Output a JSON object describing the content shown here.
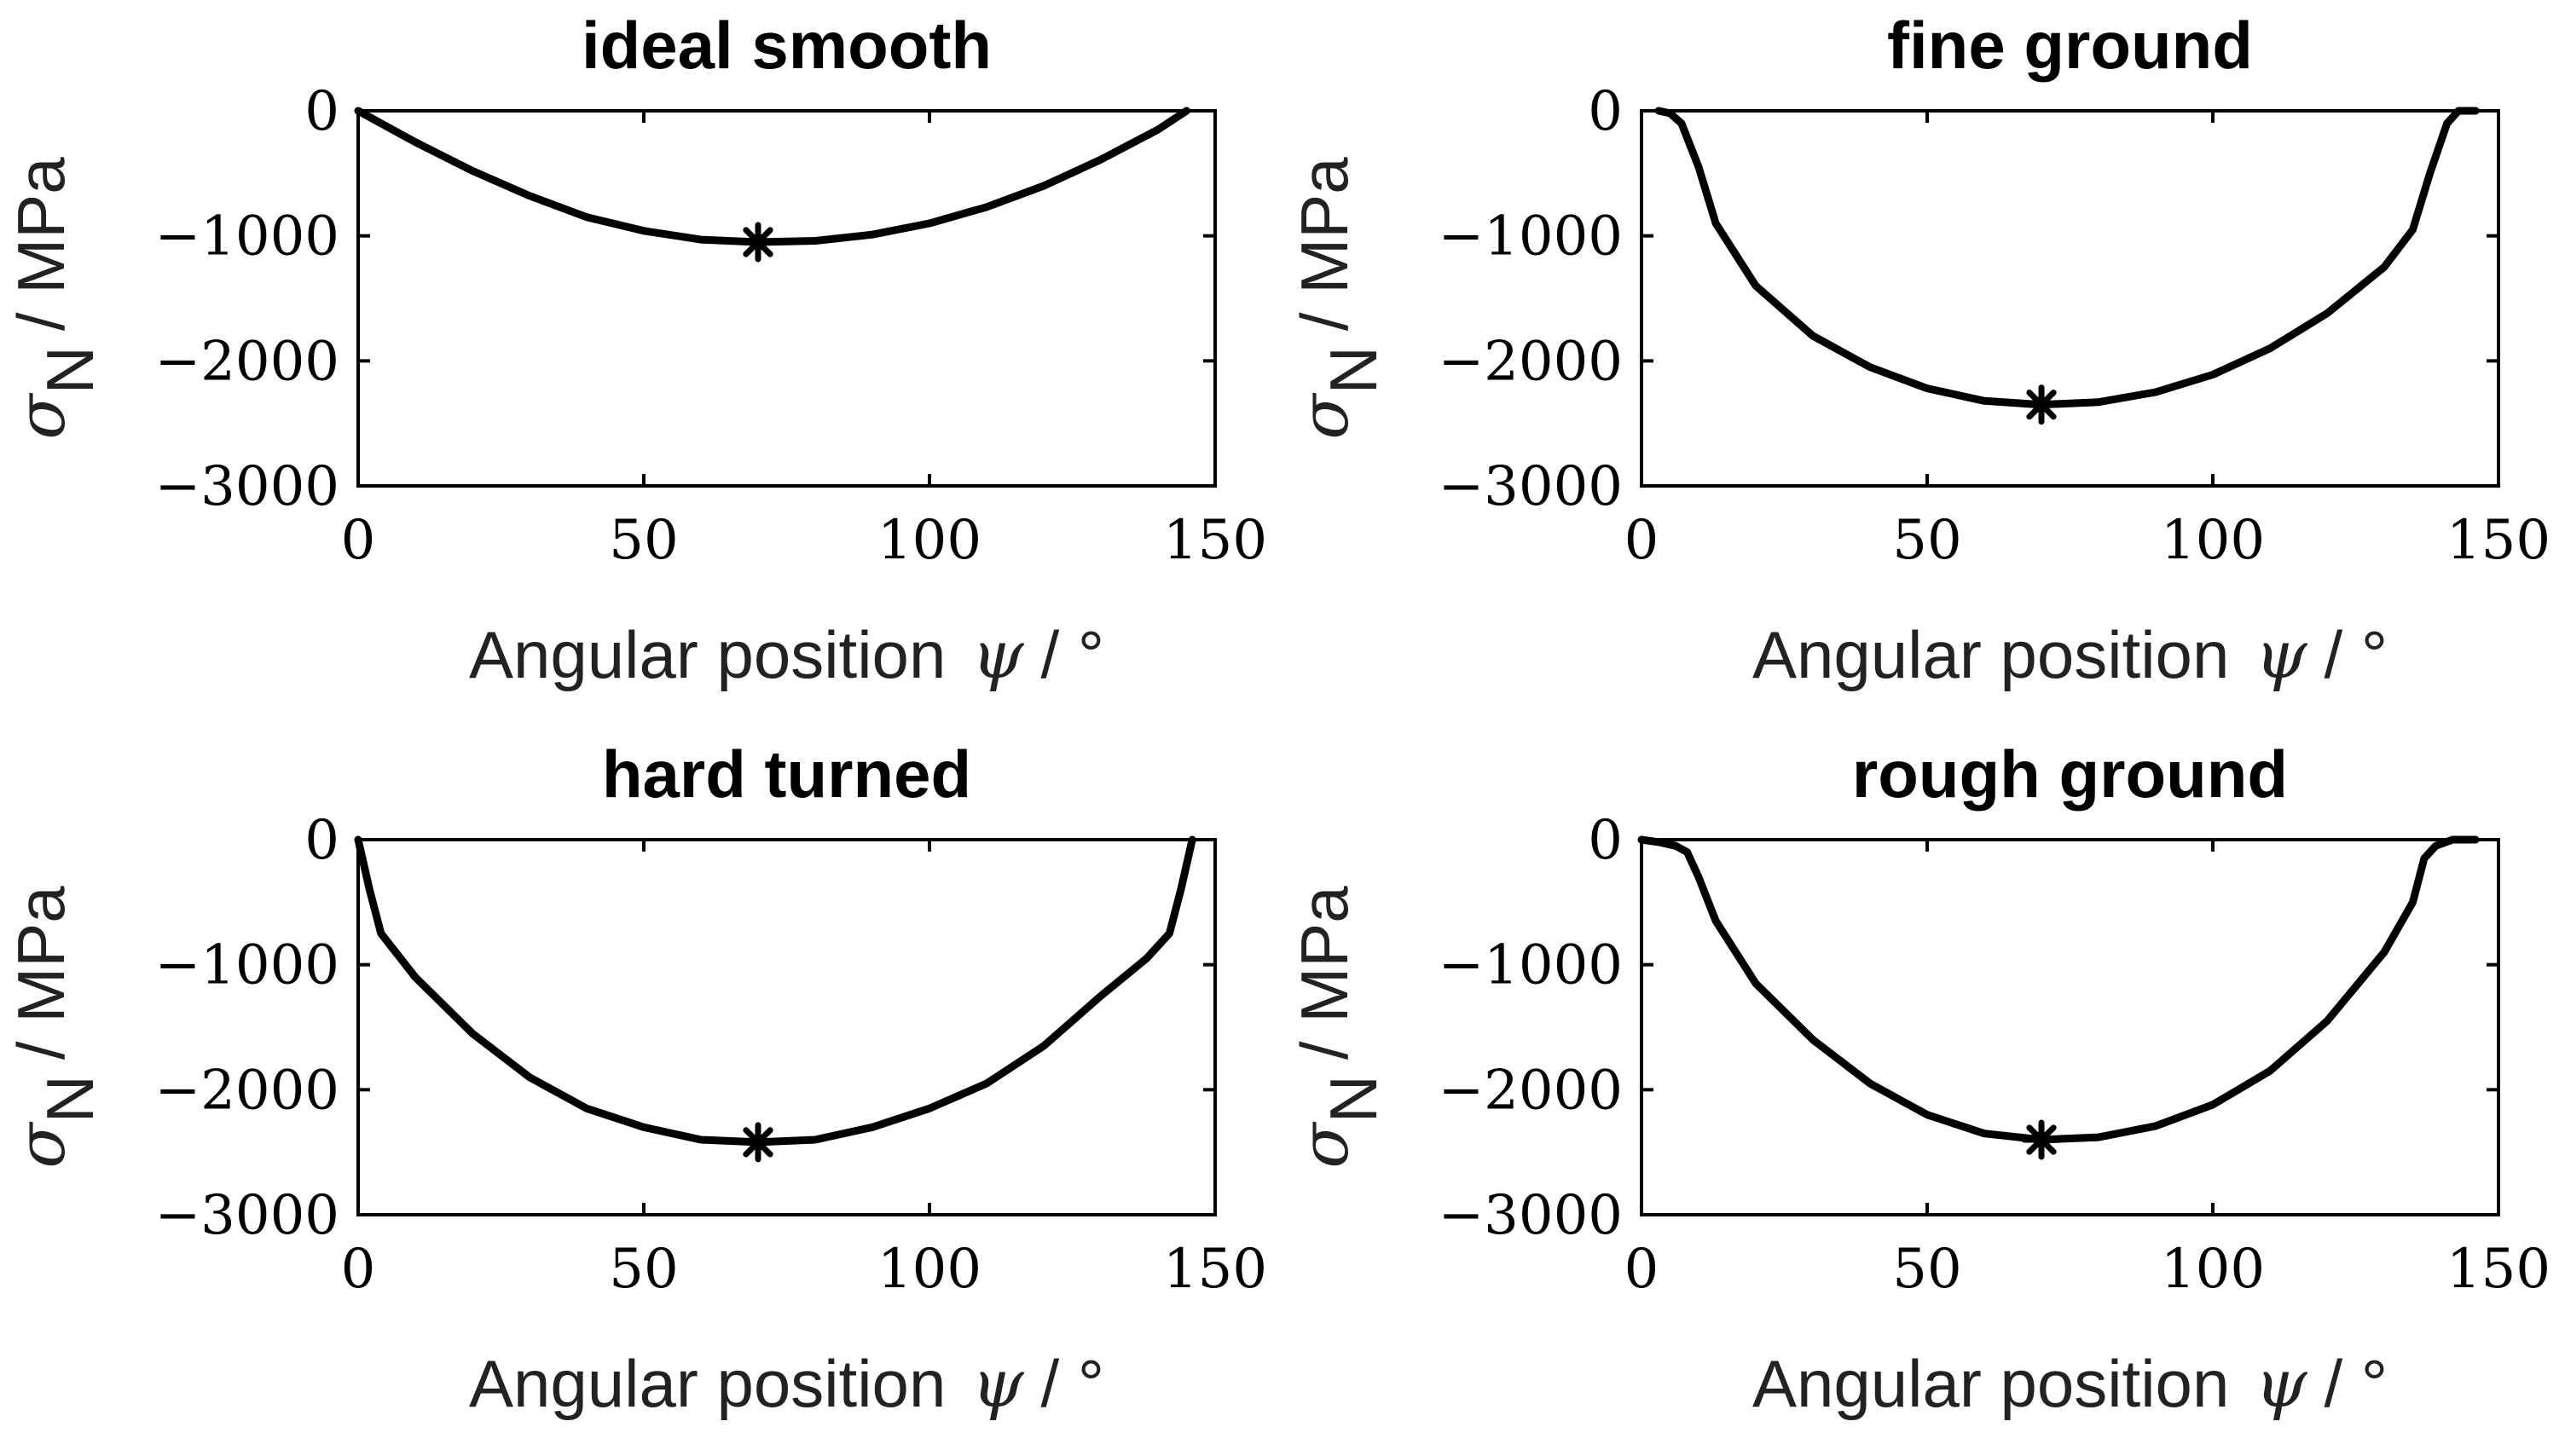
{
  "chart_data": [
    {
      "type": "line",
      "title": "ideal smooth",
      "xlabel_text": "Angular position",
      "xlabel_symbol": "ψ",
      "xlabel_unit": "/ °",
      "ylabel_symbol": "σ",
      "ylabel_sub": "N",
      "ylabel_unit": "/ MPa",
      "xlim": [
        0,
        150
      ],
      "ylim": [
        -3000,
        0
      ],
      "xticks": [
        0,
        50,
        100,
        150
      ],
      "xtick_labels": [
        "0",
        "50",
        "100",
        "150"
      ],
      "yticks": [
        0,
        -1000,
        -2000,
        -3000
      ],
      "ytick_labels": [
        "0",
        "−1000",
        "−2000",
        "−3000"
      ],
      "grid": false,
      "series": [
        {
          "x": [
            0,
            10,
            20,
            30,
            40,
            50,
            60,
            70,
            80,
            90,
            100,
            110,
            120,
            130,
            140,
            145
          ],
          "y": [
            0,
            -250,
            -480,
            -680,
            -850,
            -960,
            -1030,
            -1050,
            -1040,
            -990,
            -900,
            -770,
            -600,
            -390,
            -150,
            0
          ]
        }
      ],
      "marker": {
        "x": 70,
        "y": -1050,
        "symbol": "asterisk"
      }
    },
    {
      "type": "line",
      "title": "fine ground",
      "xlabel_text": "Angular position",
      "xlabel_symbol": "ψ",
      "xlabel_unit": "/ °",
      "ylabel_symbol": "σ",
      "ylabel_sub": "N",
      "ylabel_unit": "/ MPa",
      "xlim": [
        0,
        150
      ],
      "ylim": [
        -3000,
        0
      ],
      "xticks": [
        0,
        50,
        100,
        150
      ],
      "xtick_labels": [
        "0",
        "50",
        "100",
        "150"
      ],
      "yticks": [
        0,
        -1000,
        -2000,
        -3000
      ],
      "ytick_labels": [
        "0",
        "−1000",
        "−2000",
        "−3000"
      ],
      "grid": false,
      "series": [
        {
          "x": [
            3,
            5,
            7,
            10,
            13,
            20,
            30,
            40,
            50,
            60,
            70,
            80,
            90,
            100,
            110,
            120,
            130,
            135,
            138,
            141,
            143,
            146
          ],
          "y": [
            0,
            -20,
            -100,
            -450,
            -900,
            -1400,
            -1800,
            -2050,
            -2220,
            -2320,
            -2350,
            -2330,
            -2250,
            -2110,
            -1900,
            -1620,
            -1250,
            -950,
            -500,
            -100,
            0,
            0
          ]
        }
      ],
      "marker": {
        "x": 70,
        "y": -2350,
        "symbol": "asterisk"
      }
    },
    {
      "type": "line",
      "title": "hard turned",
      "xlabel_text": "Angular position",
      "xlabel_symbol": "ψ",
      "xlabel_unit": "/ °",
      "ylabel_symbol": "σ",
      "ylabel_sub": "N",
      "ylabel_unit": "/ MPa",
      "xlim": [
        0,
        150
      ],
      "ylim": [
        -3000,
        0
      ],
      "xticks": [
        0,
        50,
        100,
        150
      ],
      "xtick_labels": [
        "0",
        "50",
        "100",
        "150"
      ],
      "yticks": [
        0,
        -1000,
        -2000,
        -3000
      ],
      "ytick_labels": [
        "0",
        "−1000",
        "−2000",
        "−3000"
      ],
      "grid": false,
      "series": [
        {
          "x": [
            0,
            2,
            4,
            10,
            20,
            30,
            40,
            50,
            60,
            70,
            80,
            90,
            100,
            110,
            120,
            130,
            138,
            142,
            144,
            146
          ],
          "y": [
            0,
            -400,
            -750,
            -1100,
            -1550,
            -1900,
            -2150,
            -2300,
            -2400,
            -2420,
            -2400,
            -2300,
            -2150,
            -1950,
            -1650,
            -1250,
            -950,
            -750,
            -400,
            0
          ]
        }
      ],
      "marker": {
        "x": 70,
        "y": -2420,
        "symbol": "asterisk"
      }
    },
    {
      "type": "line",
      "title": "rough ground",
      "xlabel_text": "Angular position",
      "xlabel_symbol": "ψ",
      "xlabel_unit": "/ °",
      "ylabel_symbol": "σ",
      "ylabel_sub": "N",
      "ylabel_unit": "/ MPa",
      "xlim": [
        0,
        150
      ],
      "ylim": [
        -3000,
        0
      ],
      "xticks": [
        0,
        50,
        100,
        150
      ],
      "xtick_labels": [
        "0",
        "50",
        "100",
        "150"
      ],
      "yticks": [
        0,
        -1000,
        -2000,
        -3000
      ],
      "ytick_labels": [
        "0",
        "−1000",
        "−2000",
        "−3000"
      ],
      "grid": false,
      "series": [
        {
          "x": [
            0,
            3,
            6,
            8,
            10,
            13,
            20,
            30,
            40,
            50,
            60,
            70,
            80,
            90,
            100,
            110,
            120,
            130,
            135,
            137,
            139,
            142,
            146
          ],
          "y": [
            0,
            -20,
            -50,
            -100,
            -300,
            -650,
            -1150,
            -1600,
            -1950,
            -2200,
            -2350,
            -2400,
            -2380,
            -2290,
            -2120,
            -1850,
            -1450,
            -900,
            -500,
            -150,
            -50,
            0,
            0
          ]
        }
      ],
      "marker": {
        "x": 70,
        "y": -2400,
        "symbol": "asterisk"
      }
    }
  ]
}
